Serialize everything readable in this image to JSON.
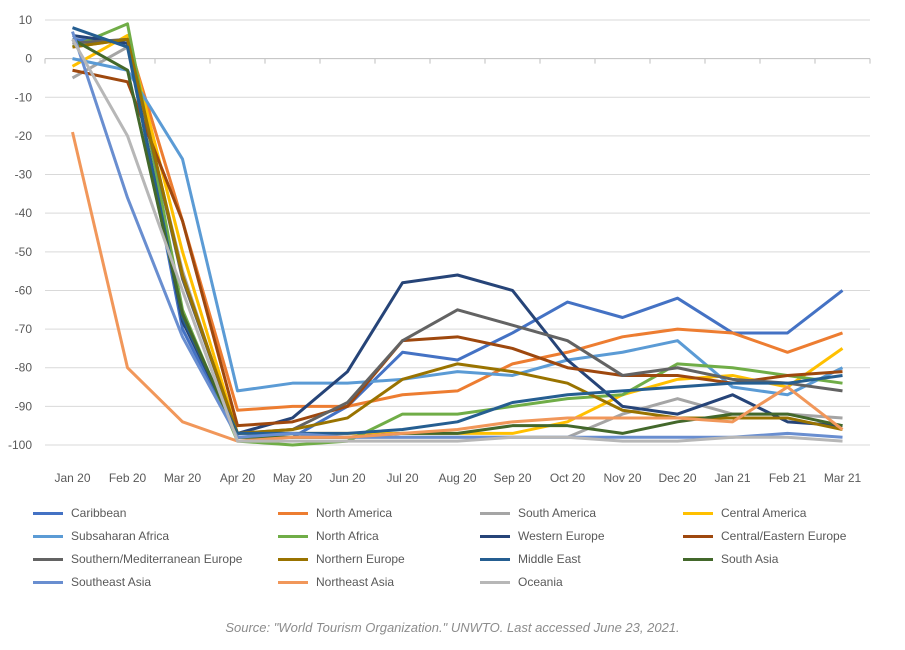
{
  "chart_data": {
    "type": "line",
    "categories": [
      "Jan 20",
      "Feb 20",
      "Mar 20",
      "Apr 20",
      "May 20",
      "Jun 20",
      "Jul 20",
      "Aug 20",
      "Sep 20",
      "Oct 20",
      "Nov 20",
      "Dec 20",
      "Jan 21",
      "Feb 21",
      "Mar 21"
    ],
    "ylim": [
      -100,
      10
    ],
    "yticks": [
      10,
      0,
      -10,
      -20,
      -30,
      -40,
      -50,
      -60,
      -70,
      -80,
      -90,
      -100
    ],
    "grid": true,
    "legend_position": "bottom",
    "series": [
      {
        "name": "Caribbean",
        "color": "#4472C4",
        "values": [
          5,
          4,
          -70,
          -98,
          -98,
          -90,
          -76,
          -78,
          -71,
          -63,
          -67,
          -62,
          -71,
          -71,
          -60
        ]
      },
      {
        "name": "North America",
        "color": "#ED7D31",
        "values": [
          3,
          5,
          -42,
          -91,
          -90,
          -90,
          -87,
          -86,
          -79,
          -76,
          -72,
          -70,
          -71,
          -76,
          -71
        ]
      },
      {
        "name": "South America",
        "color": "#A5A5A5",
        "values": [
          -5,
          3,
          -55,
          -98,
          -98,
          -98,
          -98,
          -98,
          -98,
          -98,
          -92,
          -88,
          -92,
          -92,
          -93
        ]
      },
      {
        "name": "Central America",
        "color": "#FFC000",
        "values": [
          -2,
          6,
          -50,
          -97,
          -97,
          -97,
          -97,
          -97,
          -97,
          -94,
          -87,
          -83,
          -82,
          -85,
          -75
        ]
      },
      {
        "name": "Subsaharan Africa",
        "color": "#5B9BD5",
        "values": [
          0,
          -3,
          -26,
          -86,
          -84,
          -84,
          -83,
          -81,
          -82,
          -78,
          -76,
          -73,
          -85,
          -87,
          -80
        ]
      },
      {
        "name": "North Africa",
        "color": "#70AD47",
        "values": [
          3,
          9,
          -65,
          -99,
          -100,
          -99,
          -92,
          -92,
          -90,
          -88,
          -87,
          -79,
          -80,
          -82,
          -84
        ]
      },
      {
        "name": "Western Europe",
        "color": "#264478",
        "values": [
          6,
          4,
          -68,
          -97,
          -93,
          -81,
          -58,
          -56,
          -60,
          -78,
          -90,
          -92,
          -87,
          -94,
          -95
        ]
      },
      {
        "name": "Central/Eastern Europe",
        "color": "#9E480E",
        "values": [
          -3,
          -6,
          -42,
          -95,
          -94,
          -90,
          -73,
          -72,
          -75,
          -80,
          -82,
          -82,
          -84,
          -82,
          -81
        ]
      },
      {
        "name": "Southern/Mediterranean Europe",
        "color": "#636363",
        "values": [
          4,
          5,
          -57,
          -97,
          -96,
          -89,
          -73,
          -65,
          -69,
          -73,
          -82,
          -80,
          -83,
          -84,
          -86
        ]
      },
      {
        "name": "Northern Europe",
        "color": "#997300",
        "values": [
          3,
          5,
          -56,
          -97,
          -96,
          -93,
          -83,
          -79,
          -81,
          -84,
          -91,
          -93,
          -93,
          -93,
          -96
        ]
      },
      {
        "name": "Middle East",
        "color": "#255E91",
        "values": [
          8,
          3,
          -67,
          -97,
          -97,
          -97,
          -96,
          -94,
          -89,
          -87,
          -86,
          -85,
          -84,
          -84,
          -82
        ]
      },
      {
        "name": "South Asia",
        "color": "#43682B",
        "values": [
          5,
          -3,
          -66,
          -98,
          -98,
          -98,
          -97,
          -97,
          -95,
          -95,
          -97,
          -94,
          -92,
          -92,
          -95
        ]
      },
      {
        "name": "Southeast Asia",
        "color": "#698ED0",
        "values": [
          7,
          -36,
          -72,
          -98,
          -97,
          -98,
          -98,
          -98,
          -98,
          -98,
          -98,
          -98,
          -98,
          -97,
          -98
        ]
      },
      {
        "name": "Northeast Asia",
        "color": "#F1975A",
        "values": [
          -19,
          -80,
          -94,
          -99,
          -98,
          -98,
          -97,
          -96,
          -94,
          -93,
          -93,
          -93,
          -94,
          -85,
          -96
        ]
      },
      {
        "name": "Oceania",
        "color": "#B7B7B7",
        "values": [
          5,
          -20,
          -60,
          -99,
          -99,
          -99,
          -99,
          -99,
          -98,
          -98,
          -99,
          -99,
          -98,
          -98,
          -99
        ]
      }
    ]
  },
  "source": "Source: \"World Tourism Organization.\" UNWTO. Last accessed June 23, 2021."
}
